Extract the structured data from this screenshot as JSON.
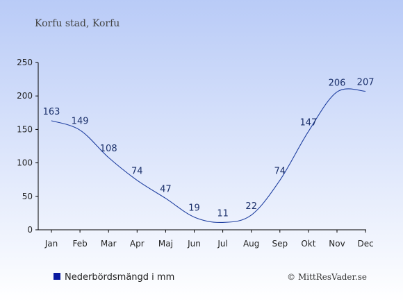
{
  "title": "Korfu stad, Korfu",
  "legend_label": "Nederbördsmängd i mm",
  "copyright": "© MittResVader.se",
  "colors": {
    "line": "#1f3fa0",
    "legend_square": "#0a1aa0",
    "label": "#1a2f6a",
    "axis": "#000000",
    "bg_top": "#b9cbf7",
    "bg_bottom": "#ffffff"
  },
  "chart_data": {
    "type": "line",
    "categories": [
      "Jan",
      "Feb",
      "Mar",
      "Apr",
      "Maj",
      "Jun",
      "Jul",
      "Aug",
      "Sep",
      "Okt",
      "Nov",
      "Dec"
    ],
    "series": [
      {
        "name": "Nederbördsmängd i mm",
        "values": [
          163,
          149,
          108,
          74,
          47,
          19,
          11,
          22,
          74,
          147,
          206,
          207
        ]
      }
    ],
    "yticks": [
      0,
      50,
      100,
      150,
      200,
      250
    ],
    "ylim": [
      0,
      250
    ],
    "grid": false,
    "legend_position": "bottom-left"
  }
}
